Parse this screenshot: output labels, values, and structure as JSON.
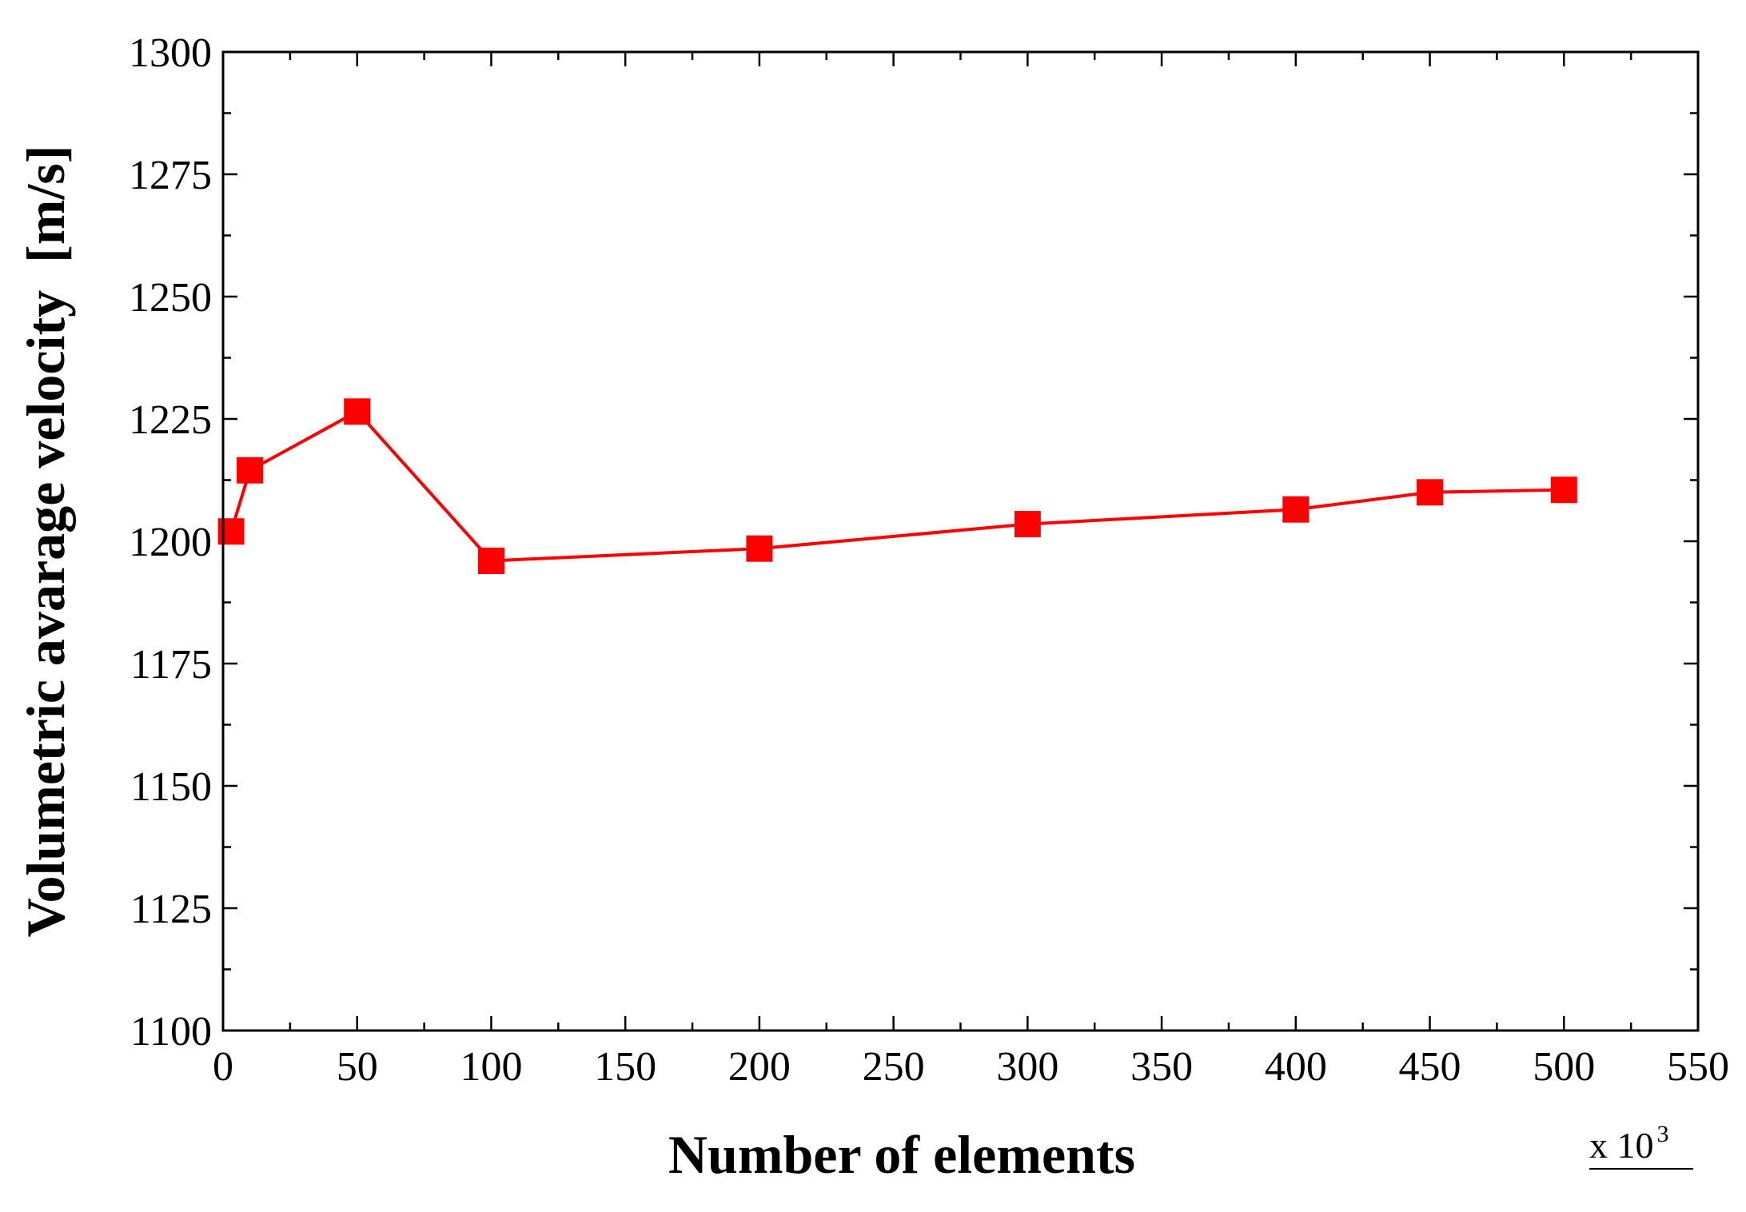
{
  "chart_data": {
    "type": "line",
    "xlabel": "Number of elements",
    "ylabel": "Volumetric avarage velocity  [m/s]",
    "x_multiplier": {
      "base": "x 10",
      "exponent": "3"
    },
    "xlim": [
      0,
      550
    ],
    "ylim": [
      1100,
      1300
    ],
    "x_ticks": [
      0,
      50,
      100,
      150,
      200,
      250,
      300,
      350,
      400,
      450,
      500,
      550
    ],
    "y_ticks": [
      1100,
      1125,
      1150,
      1175,
      1200,
      1225,
      1250,
      1275,
      1300
    ],
    "x_minor_step": 25,
    "y_minor_step": 12.5,
    "grid": false,
    "legend": "none",
    "series": [
      {
        "color": "#ff0000",
        "marker": "square",
        "x": [
          3,
          10,
          50,
          100,
          200,
          300,
          400,
          450,
          500
        ],
        "y": [
          1202,
          1214.5,
          1226.5,
          1196,
          1198.5,
          1203.5,
          1206.5,
          1210,
          1210.5
        ]
      }
    ]
  }
}
